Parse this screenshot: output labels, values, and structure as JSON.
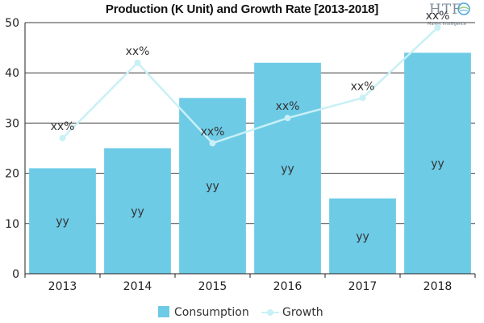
{
  "chart_data": {
    "type": "bar",
    "title": "Production (K Unit) and Growth Rate [2013-2018]",
    "categories": [
      "2013",
      "2014",
      "2015",
      "2016",
      "2017",
      "2018"
    ],
    "ylim": [
      0,
      50
    ],
    "yticks": [
      "0",
      "10",
      "20",
      "30",
      "40",
      "50"
    ],
    "grid": true,
    "legend_placement": "bottom",
    "series": [
      {
        "name": "Consumption",
        "kind": "bar",
        "color": "#6dcbe6",
        "values": [
          21,
          25,
          35,
          42,
          15,
          44
        ],
        "labels": [
          "yy",
          "yy",
          "yy",
          "yy",
          "yy",
          "yy"
        ]
      },
      {
        "name": "Growth",
        "kind": "line",
        "color": "#c9f0f6",
        "values": [
          27,
          42,
          26,
          31,
          35,
          49
        ],
        "labels": [
          "xx%",
          "xx%",
          "xx%",
          "xx%",
          "xx%",
          "xx%"
        ]
      }
    ]
  },
  "logo": {
    "main": "HTF",
    "sub": "Market Intelligence"
  }
}
